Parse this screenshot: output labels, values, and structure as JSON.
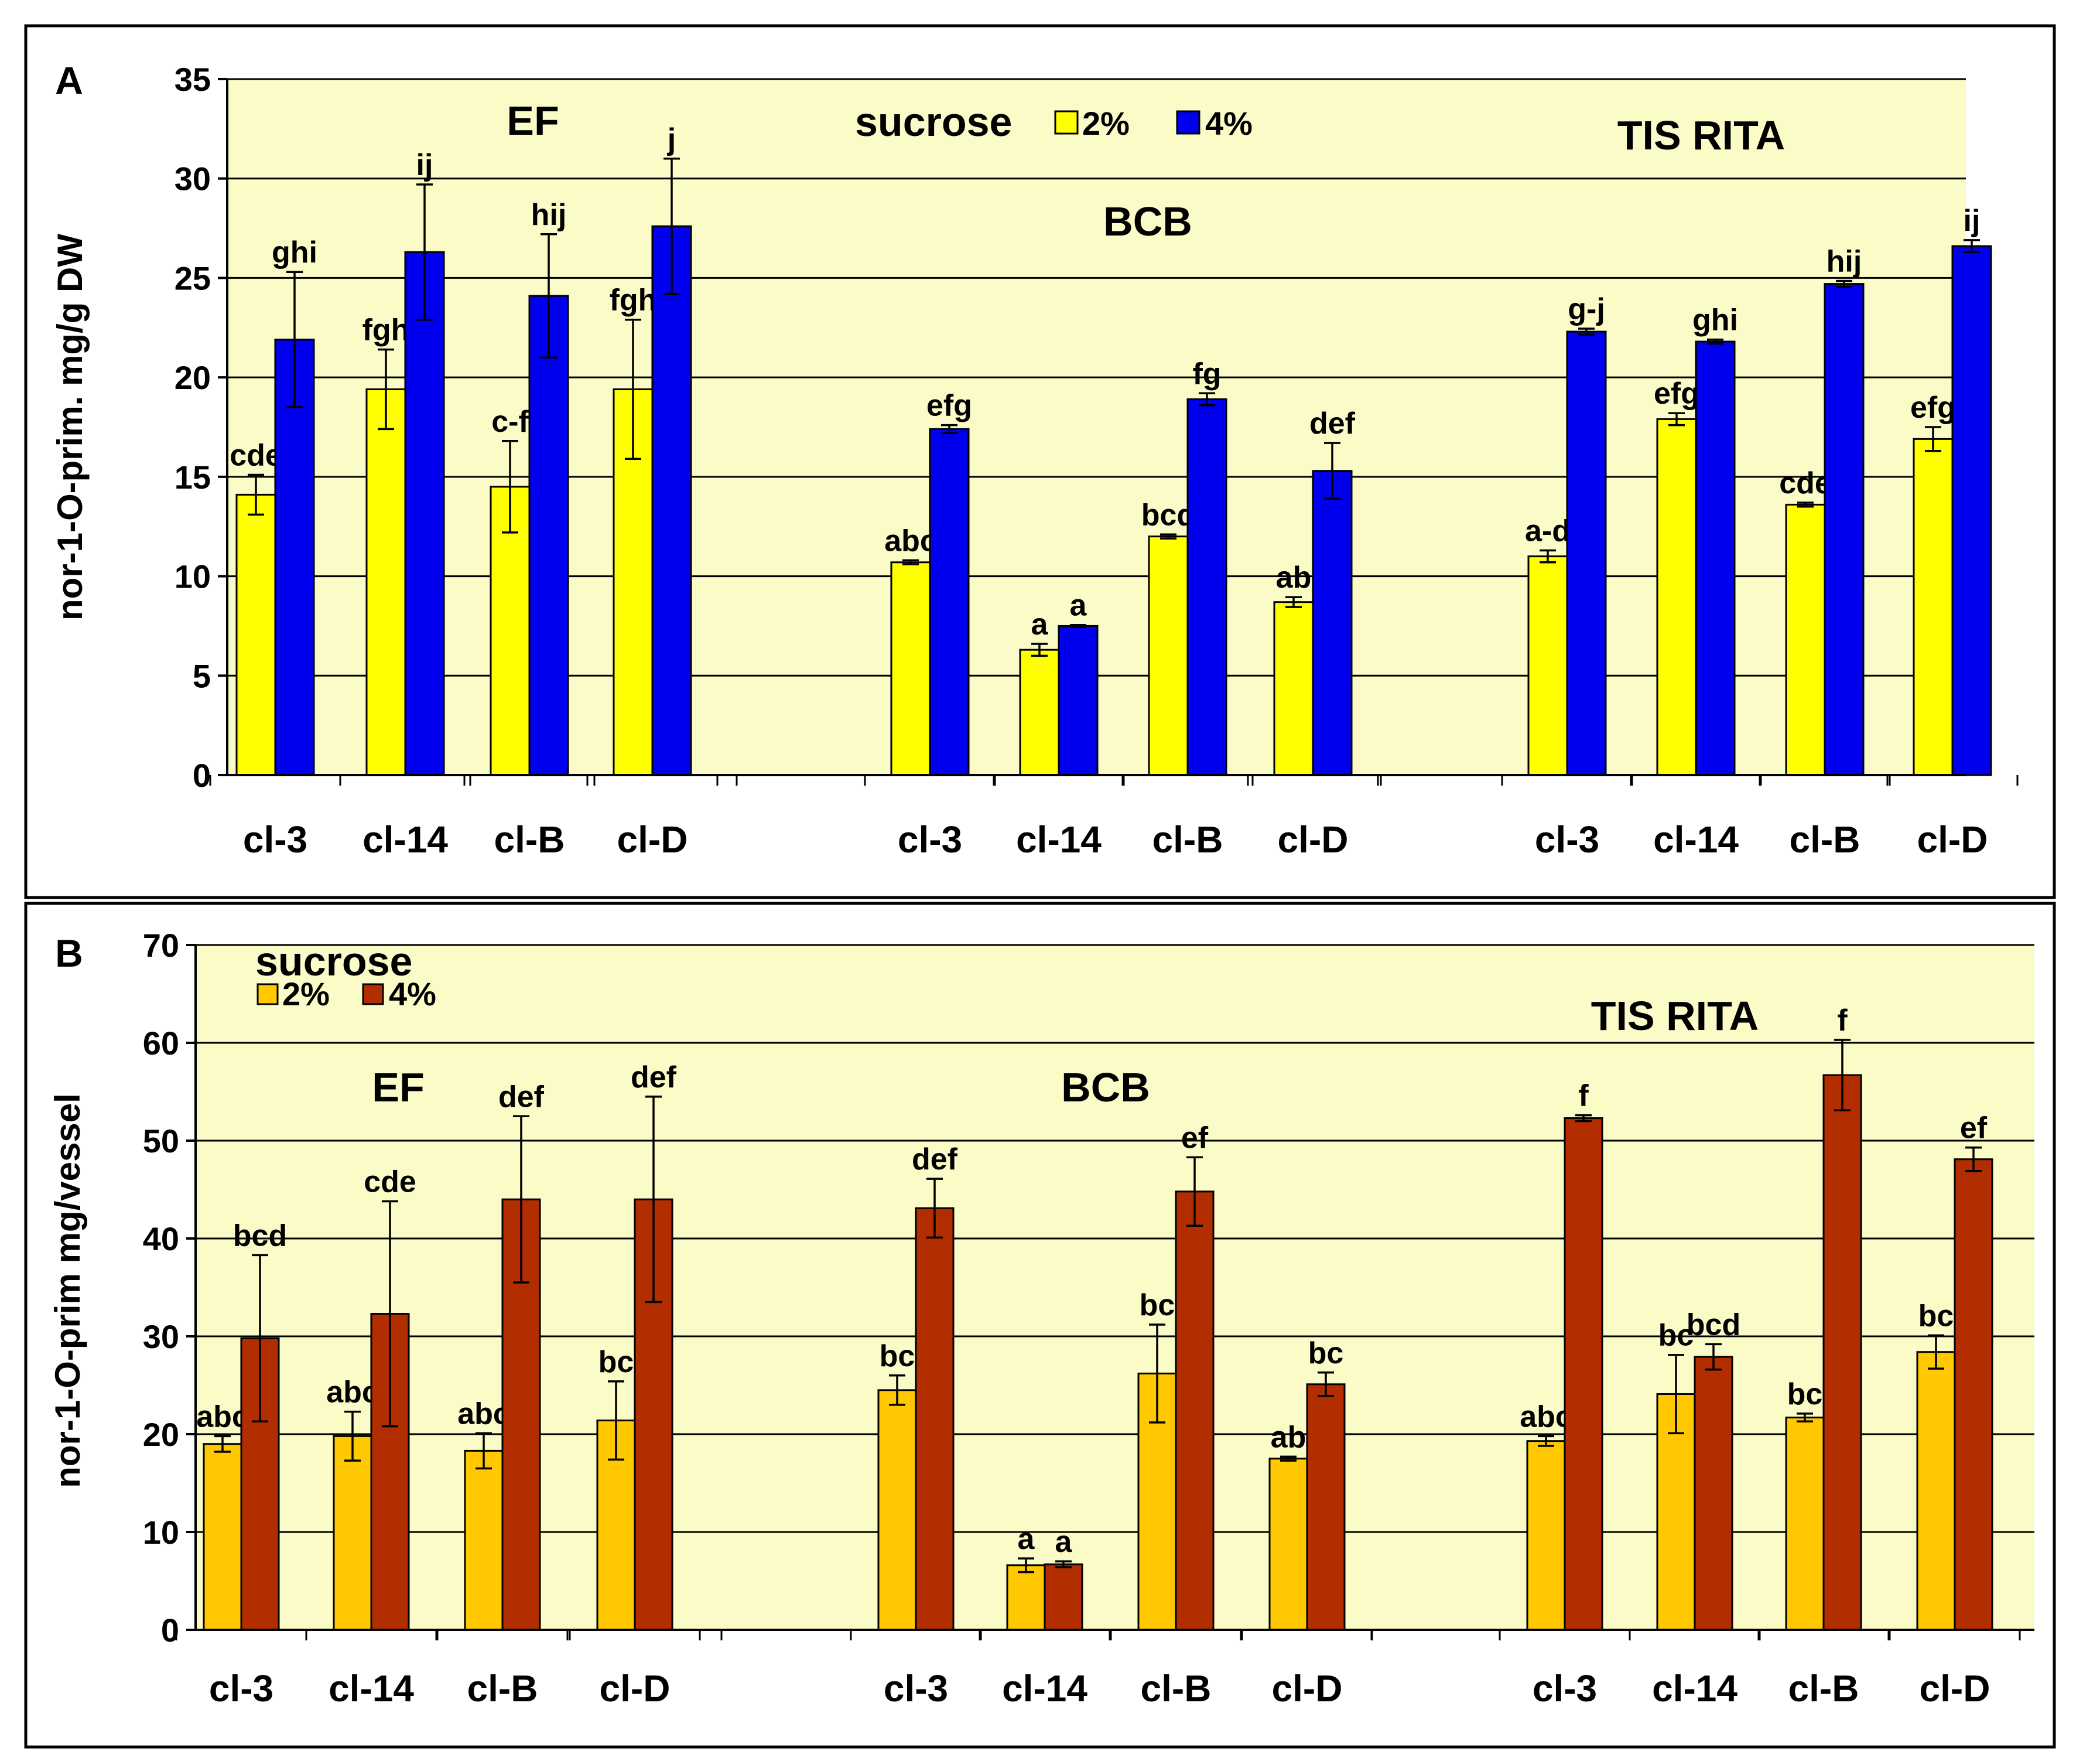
{
  "chart_data": [
    {
      "type": "bar",
      "panel_letter": "A",
      "ylabel": "nor-1-O-prim. mg/g DW",
      "ylim": [
        0,
        35
      ],
      "yticks": [
        0,
        5,
        10,
        15,
        20,
        25,
        30,
        35
      ],
      "grid": true,
      "plot_bg": "#fbfbc8",
      "legend": {
        "title": "sucrose",
        "labels": [
          "2%",
          "4%"
        ],
        "placement": "top-center"
      },
      "series_colors": [
        "#ffff00",
        "#0000ee"
      ],
      "groups": [
        {
          "name": "EF",
          "categories": [
            "cl-3",
            "cl-14",
            "cl-B",
            "cl-D"
          ]
        },
        {
          "name": "BCB",
          "categories": [
            "cl-3",
            "cl-14",
            "cl-B",
            "cl-D"
          ]
        },
        {
          "name": "TIS RITA",
          "categories": [
            "cl-3",
            "cl-14",
            "cl-B",
            "cl-D"
          ]
        }
      ],
      "series": [
        {
          "name": "2%",
          "values": [
            14.1,
            19.4,
            14.5,
            19.4,
            10.7,
            6.3,
            12.0,
            8.7,
            11.0,
            17.9,
            13.6,
            16.9
          ],
          "errors": [
            1.0,
            2.0,
            2.3,
            3.5,
            0.1,
            0.3,
            0.1,
            0.25,
            0.3,
            0.3,
            0.1,
            0.6
          ],
          "labels": [
            "cde",
            "fgh",
            "c-f",
            "fgh",
            "abc",
            "a",
            "bcd",
            "ab",
            "a-d",
            "efg",
            "cde",
            "efg"
          ]
        },
        {
          "name": "4%",
          "values": [
            21.9,
            26.3,
            24.1,
            27.6,
            17.4,
            7.5,
            18.9,
            15.3,
            22.3,
            21.8,
            24.7,
            26.6
          ],
          "errors": [
            3.4,
            3.4,
            3.1,
            3.4,
            0.2,
            0.05,
            0.3,
            1.4,
            0.15,
            0.1,
            0.15,
            0.3
          ],
          "labels": [
            "ghi",
            "ij",
            "hij",
            "j",
            "efg",
            "a",
            "fg",
            "def",
            "g-j",
            "ghi",
            "hij",
            "ij"
          ]
        }
      ]
    },
    {
      "type": "bar",
      "panel_letter": "B",
      "ylabel": "nor-1-O-prim  mg/vessel",
      "ylim": [
        0,
        70
      ],
      "yticks": [
        0,
        10,
        20,
        30,
        40,
        50,
        60,
        70
      ],
      "grid": true,
      "plot_bg": "#fbfbc8",
      "legend": {
        "title": "sucrose",
        "labels": [
          "2%",
          "4%"
        ],
        "placement": "top-left"
      },
      "series_colors": [
        "#ffc800",
        "#b22e00"
      ],
      "groups": [
        {
          "name": "EF",
          "categories": [
            "cl-3",
            "cl-14",
            "cl-B",
            "cl-D"
          ]
        },
        {
          "name": "BCB",
          "categories": [
            "cl-3",
            "cl-14",
            "cl-B",
            "cl-D"
          ]
        },
        {
          "name": "TIS RITA",
          "categories": [
            "cl-3",
            "cl-14",
            "cl-B",
            "cl-D"
          ]
        }
      ],
      "series": [
        {
          "name": "2%",
          "values": [
            19.0,
            19.8,
            18.3,
            21.4,
            24.5,
            6.6,
            26.2,
            17.5,
            19.3,
            24.1,
            21.7,
            28.4
          ],
          "errors": [
            0.8,
            2.5,
            1.8,
            4.0,
            1.5,
            0.7,
            5.0,
            0.2,
            0.5,
            4.0,
            0.4,
            1.7
          ],
          "labels": [
            "abc",
            "abc",
            "abc",
            "bc",
            "bc",
            "a",
            "bc",
            "ab",
            "abc",
            "bc",
            "bc",
            "bc"
          ]
        },
        {
          "name": "4%",
          "values": [
            29.8,
            32.3,
            44.0,
            44.0,
            43.1,
            6.7,
            44.8,
            25.1,
            52.3,
            27.9,
            56.7,
            48.1
          ],
          "errors": [
            8.5,
            11.5,
            8.5,
            10.5,
            3.0,
            0.3,
            3.5,
            1.2,
            0.3,
            1.3,
            3.6,
            1.2
          ],
          "labels": [
            "bcd",
            "cde",
            "def",
            "def",
            "def",
            "a",
            "ef",
            "bc",
            "f",
            "bcd",
            "f",
            "ef"
          ]
        }
      ]
    }
  ]
}
